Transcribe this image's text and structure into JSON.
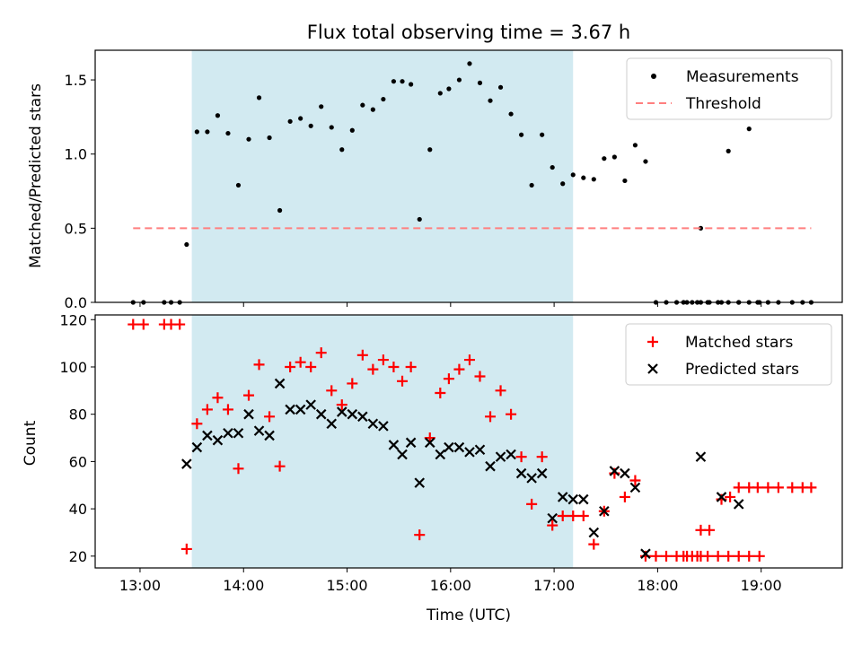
{
  "figure": {
    "title": "Flux total observing time = 3.67 h"
  },
  "colors": {
    "shade": "#add8e6",
    "measurement": "#000000",
    "threshold": "#ff7f7f",
    "matched": "#ff0000",
    "predicted": "#000000"
  },
  "chart_data": [
    {
      "type": "scatter",
      "panel": "top",
      "title": "Flux total observing time = 3.67 h",
      "xlabel": "",
      "ylabel": "Matched/Predicted stars",
      "ylim": [
        0,
        1.7
      ],
      "xlim": [
        "12:34",
        "19:47"
      ],
      "yticks": [
        "0.0",
        "0.5",
        "1.0",
        "1.5"
      ],
      "grid": false,
      "legend_position": "top-right",
      "shaded_interval": [
        "13:30",
        "17:11"
      ],
      "series": [
        {
          "name": "Measurements",
          "marker": "dot",
          "points": [
            [
              "12:56",
              0
            ],
            [
              "13:02",
              0
            ],
            [
              "13:14",
              0
            ],
            [
              "13:18",
              0
            ],
            [
              "13:23",
              0
            ],
            [
              "13:27",
              0.39
            ],
            [
              "13:33",
              1.15
            ],
            [
              "13:39",
              1.15
            ],
            [
              "13:45",
              1.26
            ],
            [
              "13:51",
              1.14
            ],
            [
              "13:57",
              0.79
            ],
            [
              "14:03",
              1.1
            ],
            [
              "14:09",
              1.38
            ],
            [
              "14:15",
              1.11
            ],
            [
              "14:21",
              0.62
            ],
            [
              "14:27",
              1.22
            ],
            [
              "14:33",
              1.24
            ],
            [
              "14:39",
              1.19
            ],
            [
              "14:45",
              1.32
            ],
            [
              "14:51",
              1.18
            ],
            [
              "14:57",
              1.03
            ],
            [
              "15:03",
              1.16
            ],
            [
              "15:09",
              1.33
            ],
            [
              "15:15",
              1.3
            ],
            [
              "15:21",
              1.37
            ],
            [
              "15:27",
              1.49
            ],
            [
              "15:32",
              1.49
            ],
            [
              "15:37",
              1.47
            ],
            [
              "15:42",
              0.56
            ],
            [
              "15:48",
              1.03
            ],
            [
              "15:54",
              1.41
            ],
            [
              "15:59",
              1.44
            ],
            [
              "16:05",
              1.5
            ],
            [
              "16:11",
              1.61
            ],
            [
              "16:17",
              1.48
            ],
            [
              "16:23",
              1.36
            ],
            [
              "16:29",
              1.45
            ],
            [
              "16:35",
              1.27
            ],
            [
              "16:41",
              1.13
            ],
            [
              "16:47",
              0.79
            ],
            [
              "16:53",
              1.13
            ],
            [
              "16:59",
              0.91
            ],
            [
              "17:05",
              0.8
            ],
            [
              "17:11",
              0.86
            ],
            [
              "17:17",
              0.84
            ],
            [
              "17:23",
              0.83
            ],
            [
              "17:29",
              0.97
            ],
            [
              "17:35",
              0.98
            ],
            [
              "17:41",
              0.82
            ],
            [
              "17:47",
              1.06
            ],
            [
              "17:53",
              0.95
            ],
            [
              "17:59",
              0
            ],
            [
              "18:05",
              0
            ],
            [
              "18:11",
              0
            ],
            [
              "18:17",
              0
            ],
            [
              "18:23",
              0
            ],
            [
              "18:29",
              0
            ],
            [
              "18:35",
              0
            ],
            [
              "18:41",
              0
            ],
            [
              "18:47",
              0
            ],
            [
              "18:53",
              0
            ],
            [
              "18:59",
              0
            ],
            [
              "18:15",
              0
            ],
            [
              "18:20",
              0
            ],
            [
              "18:25",
              0
            ],
            [
              "18:25",
              0.5
            ],
            [
              "18:30",
              0
            ],
            [
              "18:37",
              0
            ],
            [
              "18:41",
              1.02
            ],
            [
              "18:47",
              0
            ],
            [
              "18:53",
              1.17
            ],
            [
              "18:58",
              0
            ],
            [
              "19:04",
              0
            ],
            [
              "19:10",
              0
            ],
            [
              "19:18",
              0
            ],
            [
              "19:24",
              0
            ],
            [
              "19:29",
              0
            ]
          ]
        },
        {
          "name": "Threshold",
          "style": "dashed",
          "points": [
            [
              "12:56",
              0.5
            ],
            [
              "19:29",
              0.5
            ]
          ]
        }
      ]
    },
    {
      "type": "scatter",
      "panel": "bottom",
      "xlabel": "Time (UTC)",
      "ylabel": "Count",
      "ylim": [
        15,
        122
      ],
      "xlim": [
        "12:34",
        "19:47"
      ],
      "xticks": [
        "13:00",
        "14:00",
        "15:00",
        "16:00",
        "17:00",
        "18:00",
        "19:00"
      ],
      "yticks": [
        "20",
        "40",
        "60",
        "80",
        "100",
        "120"
      ],
      "grid": false,
      "legend_position": "top-right",
      "shaded_interval": [
        "13:30",
        "17:11"
      ],
      "series": [
        {
          "name": "Matched stars",
          "marker": "plus",
          "points": [
            [
              "12:56",
              118
            ],
            [
              "13:02",
              118
            ],
            [
              "13:14",
              118
            ],
            [
              "13:18",
              118
            ],
            [
              "13:23",
              118
            ],
            [
              "13:27",
              23
            ],
            [
              "13:33",
              76
            ],
            [
              "13:39",
              82
            ],
            [
              "13:45",
              87
            ],
            [
              "13:51",
              82
            ],
            [
              "13:57",
              57
            ],
            [
              "14:03",
              88
            ],
            [
              "14:09",
              101
            ],
            [
              "14:15",
              79
            ],
            [
              "14:21",
              58
            ],
            [
              "14:27",
              100
            ],
            [
              "14:33",
              102
            ],
            [
              "14:39",
              100
            ],
            [
              "14:45",
              106
            ],
            [
              "14:51",
              90
            ],
            [
              "14:57",
              84
            ],
            [
              "15:03",
              93
            ],
            [
              "15:09",
              105
            ],
            [
              "15:15",
              99
            ],
            [
              "15:21",
              103
            ],
            [
              "15:27",
              100
            ],
            [
              "15:32",
              94
            ],
            [
              "15:37",
              100
            ],
            [
              "15:42",
              29
            ],
            [
              "15:48",
              70
            ],
            [
              "15:54",
              89
            ],
            [
              "15:59",
              95
            ],
            [
              "16:05",
              99
            ],
            [
              "16:11",
              103
            ],
            [
              "16:17",
              96
            ],
            [
              "16:23",
              79
            ],
            [
              "16:29",
              90
            ],
            [
              "16:35",
              80
            ],
            [
              "16:41",
              62
            ],
            [
              "16:47",
              42
            ],
            [
              "16:53",
              62
            ],
            [
              "16:59",
              33
            ],
            [
              "17:05",
              37
            ],
            [
              "17:11",
              37
            ],
            [
              "17:17",
              37
            ],
            [
              "17:23",
              25
            ],
            [
              "17:29",
              39
            ],
            [
              "17:35",
              55
            ],
            [
              "17:41",
              45
            ],
            [
              "17:47",
              52
            ],
            [
              "17:53",
              20
            ],
            [
              "17:59",
              20
            ],
            [
              "18:05",
              20
            ],
            [
              "18:11",
              20
            ],
            [
              "18:17",
              20
            ],
            [
              "18:23",
              20
            ],
            [
              "18:29",
              20
            ],
            [
              "18:35",
              20
            ],
            [
              "18:41",
              20
            ],
            [
              "18:47",
              20
            ],
            [
              "18:53",
              20
            ],
            [
              "18:59",
              20
            ],
            [
              "18:15",
              20
            ],
            [
              "18:20",
              20
            ],
            [
              "18:25",
              20
            ],
            [
              "18:25",
              31
            ],
            [
              "18:30",
              31
            ],
            [
              "18:37",
              44
            ],
            [
              "18:42",
              45
            ],
            [
              "18:47",
              49
            ],
            [
              "18:53",
              49
            ],
            [
              "18:58",
              49
            ],
            [
              "19:04",
              49
            ],
            [
              "19:10",
              49
            ],
            [
              "19:18",
              49
            ],
            [
              "19:24",
              49
            ],
            [
              "19:29",
              49
            ]
          ]
        },
        {
          "name": "Predicted stars",
          "marker": "x",
          "points": [
            [
              "13:27",
              59
            ],
            [
              "13:33",
              66
            ],
            [
              "13:39",
              71
            ],
            [
              "13:45",
              69
            ],
            [
              "13:51",
              72
            ],
            [
              "13:57",
              72
            ],
            [
              "14:03",
              80
            ],
            [
              "14:09",
              73
            ],
            [
              "14:15",
              71
            ],
            [
              "14:21",
              93
            ],
            [
              "14:27",
              82
            ],
            [
              "14:33",
              82
            ],
            [
              "14:39",
              84
            ],
            [
              "14:45",
              80
            ],
            [
              "14:51",
              76
            ],
            [
              "14:57",
              81
            ],
            [
              "15:03",
              80
            ],
            [
              "15:09",
              79
            ],
            [
              "15:15",
              76
            ],
            [
              "15:21",
              75
            ],
            [
              "15:27",
              67
            ],
            [
              "15:32",
              63
            ],
            [
              "15:37",
              68
            ],
            [
              "15:42",
              51
            ],
            [
              "15:48",
              68
            ],
            [
              "15:54",
              63
            ],
            [
              "15:59",
              66
            ],
            [
              "16:05",
              66
            ],
            [
              "16:11",
              64
            ],
            [
              "16:17",
              65
            ],
            [
              "16:23",
              58
            ],
            [
              "16:29",
              62
            ],
            [
              "16:35",
              63
            ],
            [
              "16:41",
              55
            ],
            [
              "16:47",
              53
            ],
            [
              "16:53",
              55
            ],
            [
              "16:59",
              36
            ],
            [
              "17:05",
              45
            ],
            [
              "17:11",
              44
            ],
            [
              "17:17",
              44
            ],
            [
              "17:23",
              30
            ],
            [
              "17:29",
              39
            ],
            [
              "17:35",
              56
            ],
            [
              "17:41",
              55
            ],
            [
              "17:47",
              49
            ],
            [
              "17:53",
              21
            ],
            [
              "18:25",
              62
            ],
            [
              "18:37",
              45
            ],
            [
              "18:47",
              42
            ]
          ]
        }
      ]
    }
  ]
}
